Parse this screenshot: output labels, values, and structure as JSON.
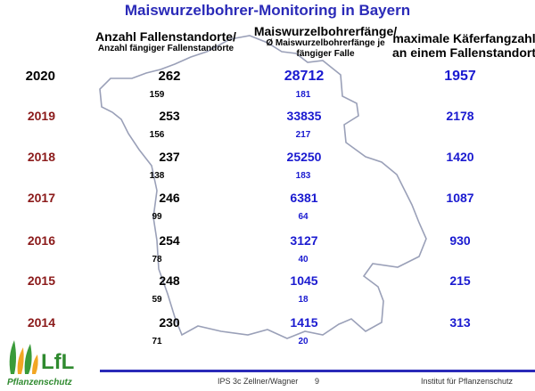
{
  "title": "Maiswurzelbohrer-Monitoring in Bayern",
  "headers": {
    "col_a_line1": "Anzahl Fallenstandorte/",
    "col_a_line2": "Anzahl fängiger Fallenstandorte",
    "col_b_line1": "Maiswurzelbohrerfänge/",
    "col_b_line2": "Ø Maiswurzelbohrerfänge je",
    "col_b_line3": "fängiger Falle",
    "col_c_line1": "maximale Käferfangzahl",
    "col_c_line2": "an einem Fallenstandort"
  },
  "rows": [
    {
      "year": "2020",
      "sites": "262",
      "positive_sites": "159",
      "catches": "28712",
      "avg_catch": "181",
      "max_catch": "1957"
    },
    {
      "year": "2019",
      "sites": "253",
      "positive_sites": "156",
      "catches": "33835",
      "avg_catch": "217",
      "max_catch": "2178"
    },
    {
      "year": "2018",
      "sites": "237",
      "positive_sites": "138",
      "catches": "25250",
      "avg_catch": "183",
      "max_catch": "1420"
    },
    {
      "year": "2017",
      "sites": "246",
      "positive_sites": "99",
      "catches": "6381",
      "avg_catch": "64",
      "max_catch": "1087"
    },
    {
      "year": "2016",
      "sites": "254",
      "positive_sites": "78",
      "catches": "3127",
      "avg_catch": "40",
      "max_catch": "930"
    },
    {
      "year": "2015",
      "sites": "248",
      "positive_sites": "59",
      "catches": "1045",
      "avg_catch": "18",
      "max_catch": "215"
    },
    {
      "year": "2014",
      "sites": "230",
      "positive_sites": "71",
      "catches": "1415",
      "avg_catch": "20",
      "max_catch": "313"
    }
  ],
  "footer": {
    "left": "IPS 3c Zellner/Wagner",
    "page": "9",
    "right": "Institut für Pflanzenschutz"
  },
  "logo": {
    "text": "LfL",
    "subtitle": "Pflanzenschutz"
  },
  "colors": {
    "title": "#2a2ab8",
    "year": "#8b1a1a",
    "values_blue": "#1a1ad0",
    "footer_line": "#2a2ab8",
    "logo_green": "#3a9b3a",
    "logo_orange": "#f2a623"
  }
}
